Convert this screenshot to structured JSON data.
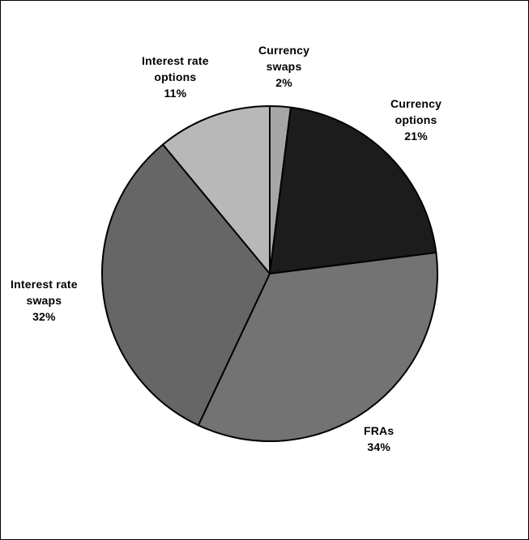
{
  "chart_data": {
    "type": "pie",
    "start_angle_deg": 0,
    "direction": "clockwise",
    "slices": [
      {
        "label_lines": [
          "Currency",
          "swaps"
        ],
        "value": 2,
        "percent_label": "2%",
        "color": "#a6a6a6"
      },
      {
        "label_lines": [
          "Currency",
          "options"
        ],
        "value": 21,
        "percent_label": "21%",
        "color": "#1c1c1c"
      },
      {
        "label_lines": [
          "FRAs"
        ],
        "value": 34,
        "percent_label": "34%",
        "color": "#737373"
      },
      {
        "label_lines": [
          "Interest rate",
          "swaps"
        ],
        "value": 32,
        "percent_label": "32%",
        "color": "#666666"
      },
      {
        "label_lines": [
          "Interest rate",
          "options"
        ],
        "value": 11,
        "percent_label": "11%",
        "color": "#b8b8b8"
      }
    ]
  }
}
